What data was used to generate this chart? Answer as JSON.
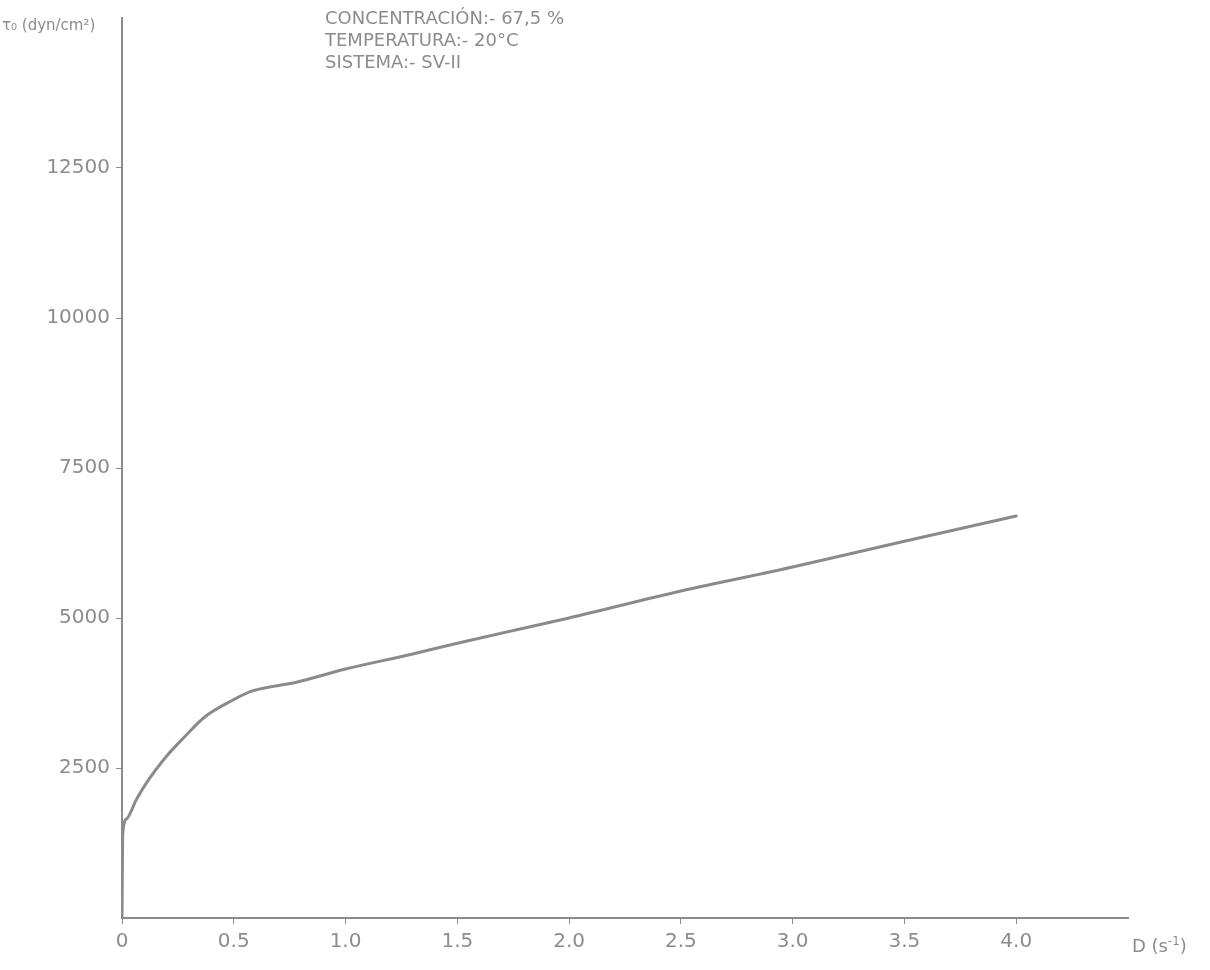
{
  "chart_data": {
    "type": "line",
    "xlabel": "D (s$^{-1}$)",
    "ylabel": "τ₀ (dyn/cm²)",
    "annotations": [
      "CONCENTRACIÓN:- 67,5 %",
      "TEMPERATURA:- 20°C",
      "SISTEMA:- SV-II"
    ],
    "x": [
      0,
      0.003,
      0.02,
      0.065,
      0.12,
      0.2,
      0.28,
      0.37,
      0.49,
      0.58,
      0.78,
      1.0,
      1.3,
      1.5,
      2.0,
      2.5,
      3.0,
      3.5,
      4.0
    ],
    "series": [
      {
        "color": "#8a8a8a",
        "values": [
          0,
          1380,
          1650,
          1980,
          2310,
          2700,
          3020,
          3350,
          3620,
          3780,
          3930,
          4150,
          4400,
          4580,
          5000,
          5450,
          5850,
          6280,
          6700
        ]
      }
    ],
    "xlim": [
      0,
      4.5
    ],
    "ylim": [
      0,
      15000
    ],
    "xticks": [
      0,
      0.5,
      {
        "value": 1,
        "label": "1.0"
      },
      1.5,
      {
        "value": 2,
        "label": "2.0"
      },
      2.5,
      {
        "value": 3,
        "label": "3.0"
      },
      3.5,
      {
        "value": 4,
        "label": "4.0"
      }
    ],
    "yticks": [
      2500,
      5000,
      7500,
      10000,
      12500
    ],
    "grid": false,
    "legend": false,
    "marker": "none",
    "line_style": "solid"
  }
}
